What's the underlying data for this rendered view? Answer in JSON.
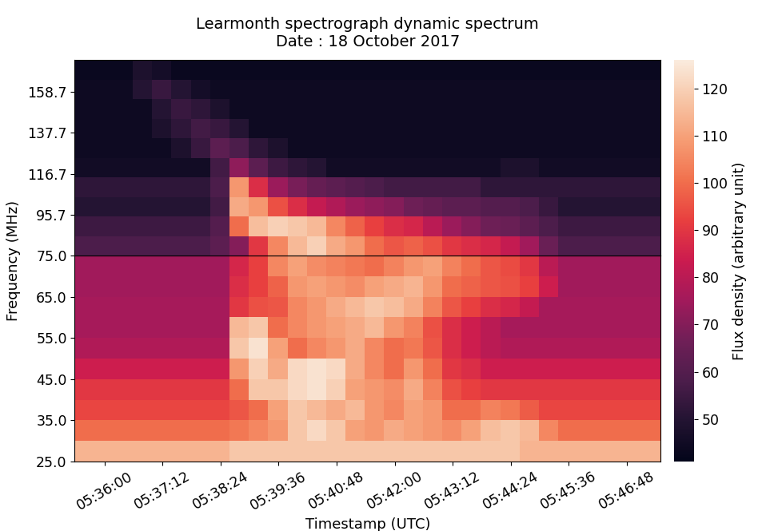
{
  "chart_data": {
    "type": "heatmap",
    "title": "Learmonth spectrograph dynamic spectrum\nDate : 18 October 2017",
    "x_label": "Timestamp (UTC)",
    "y_label": "Frequency (MHz)",
    "xlim": [
      20123,
      20850
    ],
    "xticks": [
      {
        "value": 20160,
        "label": "05:36:00"
      },
      {
        "value": 20232,
        "label": "05:37:12"
      },
      {
        "value": 20304,
        "label": "05:38:24"
      },
      {
        "value": 20376,
        "label": "05:39:36"
      },
      {
        "value": 20448,
        "label": "05:40:48"
      },
      {
        "value": 20520,
        "label": "05:42:00"
      },
      {
        "value": 20592,
        "label": "05:43:12"
      },
      {
        "value": 20664,
        "label": "05:44:24"
      },
      {
        "value": 20736,
        "label": "05:45:36"
      },
      {
        "value": 20808,
        "label": "05:46:48"
      }
    ],
    "time_edges": [
      20123,
      20147,
      20171,
      20195,
      20219,
      20243,
      20267,
      20291,
      20315,
      20339,
      20363,
      20387,
      20411,
      20435,
      20459,
      20483,
      20507,
      20531,
      20555,
      20579,
      20603,
      20627,
      20651,
      20675,
      20699,
      20723,
      20747,
      20771,
      20795,
      20819,
      20850
    ],
    "colorbar": {
      "label": "Flux density (arbitrary unit)",
      "range": [
        41,
        126
      ],
      "ticks": [
        50,
        60,
        70,
        80,
        90,
        100,
        110,
        120
      ]
    },
    "bands": [
      {
        "ylim": [
          25,
          75
        ],
        "yticks": [
          25.0,
          35.0,
          45.0,
          55.0,
          65.0,
          75.0
        ],
        "frequency_edges": [
          25,
          30,
          35,
          40,
          45,
          50,
          55,
          60,
          65,
          70,
          75
        ],
        "values": [
          [
            114,
            114,
            114,
            114,
            114,
            114,
            114,
            114,
            118,
            118,
            118,
            118,
            118,
            118,
            118,
            118,
            118,
            118,
            118,
            118,
            118,
            118,
            118,
            114,
            114,
            114,
            114,
            114,
            114,
            114
          ],
          [
            100,
            100,
            100,
            100,
            100,
            100,
            100,
            100,
            102,
            105,
            108,
            118,
            122,
            118,
            110,
            108,
            112,
            110,
            108,
            106,
            110,
            116,
            118,
            115,
            105,
            100,
            100,
            100,
            100,
            100
          ],
          [
            93,
            93,
            93,
            93,
            93,
            93,
            93,
            93,
            96,
            100,
            110,
            118,
            115,
            112,
            115,
            108,
            105,
            110,
            108,
            100,
            100,
            104,
            102,
            97,
            93,
            93,
            93,
            93,
            93,
            93
          ],
          [
            90,
            90,
            90,
            90,
            90,
            90,
            90,
            90,
            100,
            118,
            118,
            122,
            124,
            120,
            110,
            108,
            106,
            112,
            104,
            95,
            92,
            90,
            90,
            90,
            90,
            90,
            90,
            90,
            90,
            90
          ],
          [
            84,
            84,
            84,
            84,
            84,
            84,
            84,
            84,
            108,
            120,
            112,
            122,
            124,
            122,
            112,
            105,
            100,
            108,
            100,
            90,
            88,
            84,
            84,
            84,
            84,
            84,
            84,
            84,
            84,
            84
          ],
          [
            78,
            78,
            78,
            78,
            78,
            78,
            78,
            78,
            118,
            124,
            110,
            100,
            105,
            108,
            112,
            105,
            100,
            102,
            96,
            88,
            84,
            80,
            78,
            78,
            78,
            78,
            78,
            78,
            78,
            78
          ],
          [
            76,
            76,
            76,
            76,
            76,
            76,
            76,
            76,
            115,
            118,
            100,
            105,
            108,
            110,
            112,
            115,
            108,
            104,
            95,
            88,
            84,
            80,
            76,
            76,
            76,
            76,
            76,
            76,
            76,
            76
          ],
          [
            76,
            76,
            76,
            76,
            76,
            76,
            76,
            76,
            90,
            95,
            96,
            105,
            108,
            112,
            115,
            118,
            116,
            112,
            104,
            96,
            92,
            88,
            86,
            82,
            76,
            76,
            76,
            76,
            76,
            76
          ],
          [
            75,
            75,
            75,
            75,
            75,
            75,
            75,
            75,
            88,
            92,
            98,
            108,
            110,
            108,
            106,
            110,
            112,
            114,
            108,
            100,
            98,
            96,
            95,
            92,
            84,
            75,
            75,
            75,
            75,
            75
          ],
          [
            75,
            75,
            75,
            75,
            75,
            75,
            75,
            75,
            86,
            92,
            105,
            110,
            106,
            104,
            102,
            100,
            104,
            108,
            110,
            104,
            100,
            96,
            94,
            90,
            80,
            75,
            75,
            75,
            75,
            75
          ]
        ]
      },
      {
        "ylim": [
          75,
          175
        ],
        "yticks": [
          95.7,
          116.7,
          137.7,
          158.7
        ],
        "frequency_edges": [
          75,
          85,
          95,
          105,
          115,
          125,
          135,
          145,
          155,
          165,
          175
        ],
        "values": [
          [
            58,
            58,
            58,
            58,
            58,
            58,
            58,
            62,
            70,
            90,
            105,
            115,
            120,
            112,
            108,
            100,
            96,
            98,
            95,
            90,
            88,
            86,
            82,
            75,
            65,
            58,
            58,
            58,
            58,
            58
          ],
          [
            55,
            55,
            55,
            55,
            55,
            55,
            55,
            60,
            100,
            116,
            120,
            118,
            115,
            105,
            98,
            92,
            88,
            86,
            80,
            74,
            70,
            66,
            65,
            62,
            58,
            55,
            55,
            55,
            55,
            55
          ],
          [
            50,
            50,
            50,
            50,
            50,
            50,
            50,
            56,
            112,
            108,
            95,
            88,
            82,
            78,
            74,
            72,
            70,
            66,
            64,
            62,
            62,
            60,
            60,
            58,
            54,
            50,
            50,
            50,
            50,
            50
          ],
          [
            52,
            52,
            52,
            52,
            52,
            52,
            52,
            58,
            108,
            88,
            74,
            68,
            64,
            62,
            60,
            58,
            56,
            56,
            56,
            56,
            56,
            52,
            52,
            52,
            52,
            52,
            52,
            52,
            52,
            52
          ],
          [
            45,
            45,
            45,
            45,
            45,
            45,
            45,
            56,
            72,
            62,
            55,
            52,
            50,
            45,
            45,
            45,
            45,
            45,
            45,
            45,
            45,
            45,
            48,
            48,
            45,
            45,
            45,
            45,
            45,
            45
          ],
          [
            44,
            44,
            44,
            44,
            44,
            48,
            54,
            62,
            58,
            52,
            48,
            44,
            44,
            44,
            44,
            44,
            44,
            44,
            44,
            44,
            44,
            44,
            44,
            44,
            44,
            44,
            44,
            44,
            44,
            44
          ],
          [
            44,
            44,
            44,
            44,
            48,
            52,
            56,
            54,
            50,
            44,
            44,
            44,
            44,
            44,
            44,
            44,
            44,
            44,
            44,
            44,
            44,
            44,
            44,
            44,
            44,
            44,
            44,
            44,
            44,
            44
          ],
          [
            44,
            44,
            44,
            44,
            50,
            54,
            52,
            48,
            44,
            44,
            44,
            44,
            44,
            44,
            44,
            44,
            44,
            44,
            44,
            44,
            44,
            44,
            44,
            44,
            44,
            44,
            44,
            44,
            44,
            44
          ],
          [
            44,
            44,
            44,
            50,
            54,
            50,
            46,
            44,
            44,
            44,
            44,
            44,
            44,
            44,
            44,
            44,
            44,
            44,
            44,
            44,
            44,
            44,
            44,
            44,
            44,
            44,
            44,
            44,
            44,
            44
          ],
          [
            43,
            43,
            43,
            48,
            46,
            43,
            43,
            43,
            43,
            43,
            43,
            43,
            43,
            43,
            43,
            43,
            43,
            43,
            43,
            43,
            43,
            43,
            43,
            43,
            43,
            43,
            43,
            43,
            43,
            43
          ]
        ]
      }
    ]
  }
}
